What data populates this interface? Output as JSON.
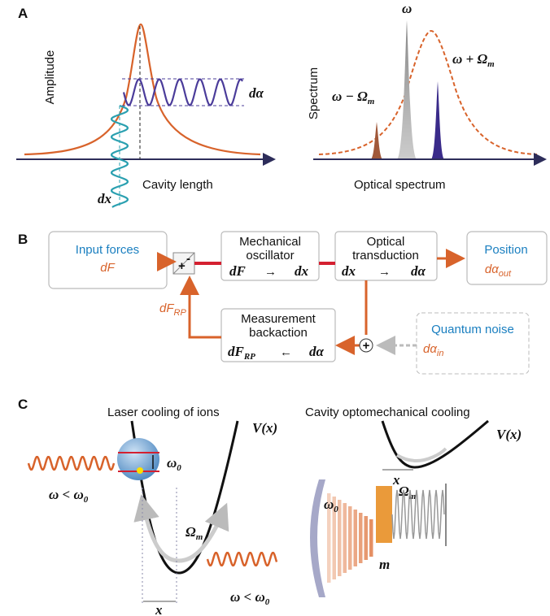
{
  "panel_a": {
    "label": "A",
    "left": {
      "y_axis": "Amplitude",
      "x_axis": "Cavity length",
      "d_alpha": "dα",
      "dx": "dx"
    },
    "right": {
      "y_axis": "Spectrum",
      "x_axis": "Optical spectrum",
      "carrier": "ω",
      "upper_sideband": {
        "text": "ω + Ω",
        "sub": "m"
      },
      "lower_sideband": {
        "text": "ω − Ω",
        "sub": "m"
      }
    }
  },
  "panel_b": {
    "label": "B",
    "input": {
      "title": "Input forces",
      "symbol": "dF"
    },
    "summing": {
      "plus": "+",
      "minus": "-"
    },
    "oscillator": {
      "title": [
        "Mechanical",
        "oscillator"
      ],
      "from": "dF",
      "arrow": "→",
      "to": "dx"
    },
    "transduction": {
      "title": [
        "Optical",
        "transduction"
      ],
      "from": "dx",
      "arrow": "→",
      "to": "dα"
    },
    "position": {
      "title": "Position",
      "symbol": "dα",
      "sub": "out"
    },
    "backaction": {
      "title": [
        "Measurement",
        "backaction"
      ],
      "from": "dF",
      "from_sub": "RP",
      "arrow": "←",
      "to": "dα"
    },
    "feedback": {
      "symbol": "dF",
      "sub": "RP"
    },
    "noise_sum": "+",
    "noise": {
      "title": "Quantum noise",
      "symbol": "dα",
      "sub": "in"
    }
  },
  "panel_c": {
    "label": "C",
    "ions": {
      "title": "Laser cooling of ions",
      "potential": "V(x)",
      "omega0": {
        "text": "ω",
        "sub": "0"
      },
      "condition": {
        "text": "ω < ω",
        "sub": "0"
      },
      "omega_m": {
        "text": "Ω",
        "sub": "m"
      },
      "x": "x"
    },
    "cavity": {
      "title": "Cavity optomechanical cooling",
      "potential": "V(x)",
      "omega_m": {
        "text": "Ω",
        "sub": "m"
      },
      "x": "x",
      "omega0": {
        "text": "ω",
        "sub": "0"
      },
      "condition": {
        "text": "ω < ω",
        "sub": "0"
      },
      "mass": "m"
    }
  }
}
